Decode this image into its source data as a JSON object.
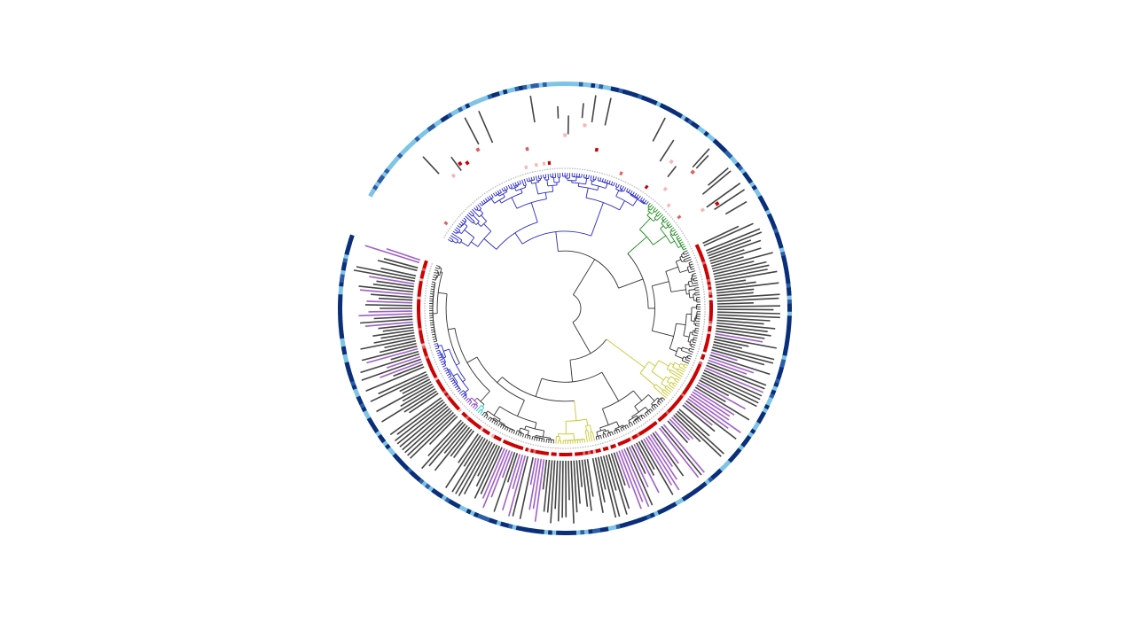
{
  "figure": {
    "type": "circular-phylogenetic-tree",
    "tip_count": 340,
    "gap": {
      "start_deg": -150,
      "end_deg": -161
    },
    "layers": [
      "tree",
      "tip-dot-ring",
      "heat-ring",
      "bar-ring",
      "outer-color-strip"
    ]
  },
  "clades": [
    {
      "name": "clade-yellow-top",
      "color": "#c8c832",
      "tip_from": 170,
      "tip_to": 186
    },
    {
      "name": "clade-yellow-right",
      "color": "#c8c832",
      "tip_from": 221,
      "tip_to": 237
    },
    {
      "name": "clade-cyan",
      "color": "#1ec8c8",
      "tip_from": 271,
      "tip_to": 273
    },
    {
      "name": "clade-purple",
      "color": "#8c3cc8",
      "tip_from": 274,
      "tip_to": 279
    },
    {
      "name": "clade-blue",
      "color": "#2828c8",
      "tip_from": 280,
      "tip_to": 306
    },
    {
      "name": "clade-blue-lower",
      "color": "#2828c8",
      "tip_from": 0,
      "tip_to": 95
    },
    {
      "name": "clade-green",
      "color": "#1e8c1e",
      "tip_from": 96,
      "tip_to": 120
    }
  ],
  "colors": {
    "backbone": "#333333",
    "tip_dot": "#bbbbbb",
    "heat_high": "#cc0000",
    "heat_mid": "#e06060",
    "heat_low": "#f4b6b6",
    "bar_gray": "#444444",
    "bar_purple": "#a060c8",
    "strip_dark": "#0a2f7a",
    "strip_mid": "#2a5ea8",
    "strip_light": "#7ec4e6"
  },
  "rings": {
    "heat_ring": {
      "sparse_until_tip": 120,
      "dense_from_tip": 121
    },
    "bar_ring": {
      "short_until_tip": 120,
      "long_from_tip": 121,
      "purple_fraction": 0.22
    },
    "outer_strip": {
      "dark_fraction": 0.62,
      "mid_fraction": 0.14
    }
  }
}
